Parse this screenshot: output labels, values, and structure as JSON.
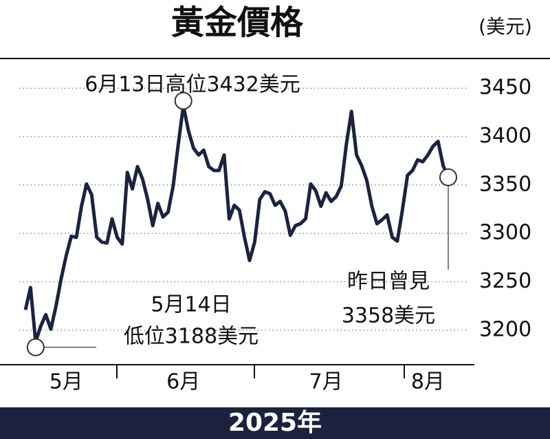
{
  "chart_data": {
    "type": "line",
    "title": "黃金價格",
    "unit": "(美元)",
    "subtitle": "2025年",
    "color": "#1a2340",
    "grid": true,
    "ylim": [
      3170,
      3480
    ],
    "yticks": [
      3200,
      3250,
      3300,
      3350,
      3400,
      3450
    ],
    "categories": [
      null,
      null,
      null,
      null,
      null,
      null,
      null,
      null,
      "5月",
      null,
      null,
      null,
      null,
      null,
      null,
      null,
      null,
      null,
      null,
      null,
      null,
      null,
      null,
      null,
      null,
      null,
      null,
      null,
      null,
      null,
      null,
      "6月",
      null,
      null,
      null,
      null,
      null,
      null,
      null,
      null,
      null,
      null,
      null,
      null,
      null,
      null,
      null,
      null,
      null,
      null,
      null,
      null,
      null,
      null,
      null,
      null,
      null,
      null,
      null,
      "7月",
      null,
      null,
      null,
      null,
      null,
      null,
      null,
      null,
      null,
      null,
      null,
      null,
      null,
      null,
      null,
      null,
      null,
      null,
      null,
      "8月",
      null,
      null,
      null,
      null
    ],
    "values": [
      3221,
      3244,
      3188,
      3204,
      3216,
      3201,
      3225,
      3253,
      3277,
      3297,
      3296,
      3328,
      3351,
      3340,
      3296,
      3291,
      3290,
      3315,
      3296,
      3289,
      3363,
      3346,
      3369,
      3356,
      3335,
      3308,
      3331,
      3317,
      3322,
      3349,
      3392,
      3432,
      3406,
      3388,
      3381,
      3386,
      3369,
      3365,
      3365,
      3381,
      3315,
      3329,
      3324,
      3296,
      3272,
      3291,
      3335,
      3343,
      3341,
      3329,
      3333,
      3323,
      3298,
      3308,
      3310,
      3315,
      3351,
      3344,
      3328,
      3342,
      3333,
      3338,
      3349,
      3392,
      3426,
      3381,
      3370,
      3355,
      3328,
      3310,
      3314,
      3319,
      3296,
      3292,
      3324,
      3360,
      3365,
      3376,
      3374,
      3381,
      3390,
      3395,
      3370,
      3358
    ],
    "annotations": [
      "6月13日高位3432美元",
      "5月14日",
      "低位3188美元",
      "昨日曾見",
      "3358美元"
    ]
  }
}
